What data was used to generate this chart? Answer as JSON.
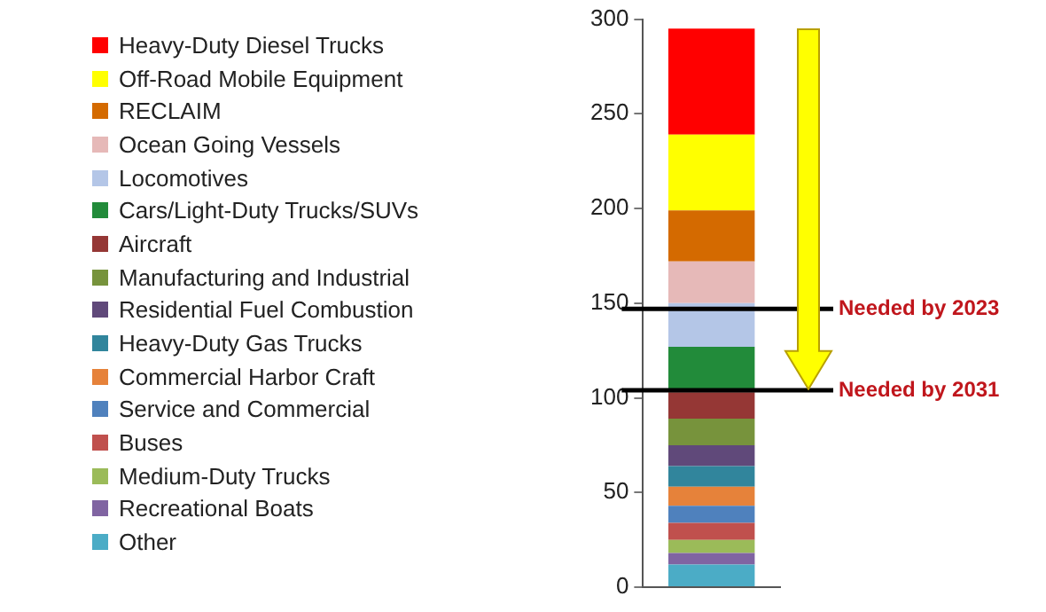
{
  "chart_data": {
    "type": "bar",
    "stacked": true,
    "categories": [
      null
    ],
    "series": [
      {
        "name": "Other",
        "color": "#4bacc6",
        "values": [
          12
        ]
      },
      {
        "name": "Recreational Boats",
        "color": "#8064a2",
        "values": [
          6
        ]
      },
      {
        "name": "Medium-Duty Trucks",
        "color": "#9bbb59",
        "values": [
          7
        ]
      },
      {
        "name": "Buses",
        "color": "#c0504d",
        "values": [
          9
        ]
      },
      {
        "name": "Service and Commercial",
        "color": "#4f81bd",
        "values": [
          9
        ]
      },
      {
        "name": "Commercial Harbor Craft",
        "color": "#e6823a",
        "values": [
          10
        ]
      },
      {
        "name": "Heavy-Duty Gas Trucks",
        "color": "#31859c",
        "values": [
          11
        ]
      },
      {
        "name": "Residential Fuel Combustion",
        "color": "#60497a",
        "values": [
          11
        ]
      },
      {
        "name": "Manufacturing and Industrial",
        "color": "#77933c",
        "values": [
          14
        ]
      },
      {
        "name": "Aircraft",
        "color": "#953735",
        "values": [
          14
        ]
      },
      {
        "name": "Cars/Light-Duty Trucks/SUVs",
        "color": "#228b3a",
        "values": [
          24
        ]
      },
      {
        "name": "Locomotives",
        "color": "#b4c6e7",
        "values": [
          23
        ]
      },
      {
        "name": "Ocean Going Vessels",
        "color": "#e6b9b8",
        "values": [
          22
        ]
      },
      {
        "name": "RECLAIM",
        "color": "#d46a00",
        "values": [
          27
        ]
      },
      {
        "name": "Off-Road Mobile Equipment",
        "color": "#ffff00",
        "values": [
          40
        ]
      },
      {
        "name": "Heavy-Duty Diesel Trucks",
        "color": "#ff0000",
        "values": [
          56
        ]
      }
    ],
    "ylim": [
      0,
      300
    ],
    "yticks": [
      0,
      50,
      100,
      150,
      200,
      250,
      300
    ],
    "grid": false,
    "legend": "left",
    "ref_lines": [
      {
        "axis": "y",
        "value": 147,
        "label": "Needed by 2023",
        "color": "#000000"
      },
      {
        "axis": "y",
        "value": 104,
        "label": "Needed by 2031",
        "color": "#000000"
      }
    ]
  }
}
